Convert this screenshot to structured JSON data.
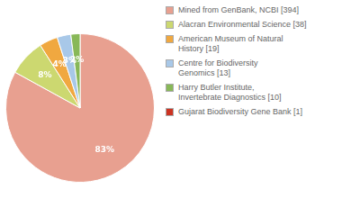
{
  "chart_data": {
    "type": "pie",
    "categories": [
      "Mined from GenBank, NCBI [394]",
      "Alacran Environmental Science [38]",
      "American Museum of Natural\nHistory [19]",
      "Centre for Biodiversity\nGenomics [13]",
      "Harry Butler Institute,\nInvertebrate Diagnostics [10]",
      "Gujarat Biodiversity Gene Bank [1]"
    ],
    "values": [
      83,
      8,
      4,
      3,
      2,
      0
    ],
    "value_labels": [
      "83%",
      "8%",
      "4%",
      "3%",
      "2%",
      null
    ],
    "colors": [
      "#e8a090",
      "#ccd870",
      "#f0a840",
      "#a8c8e8",
      "#88b858",
      "#cc3322"
    ],
    "legend": "upper right",
    "data_labels": true
  }
}
